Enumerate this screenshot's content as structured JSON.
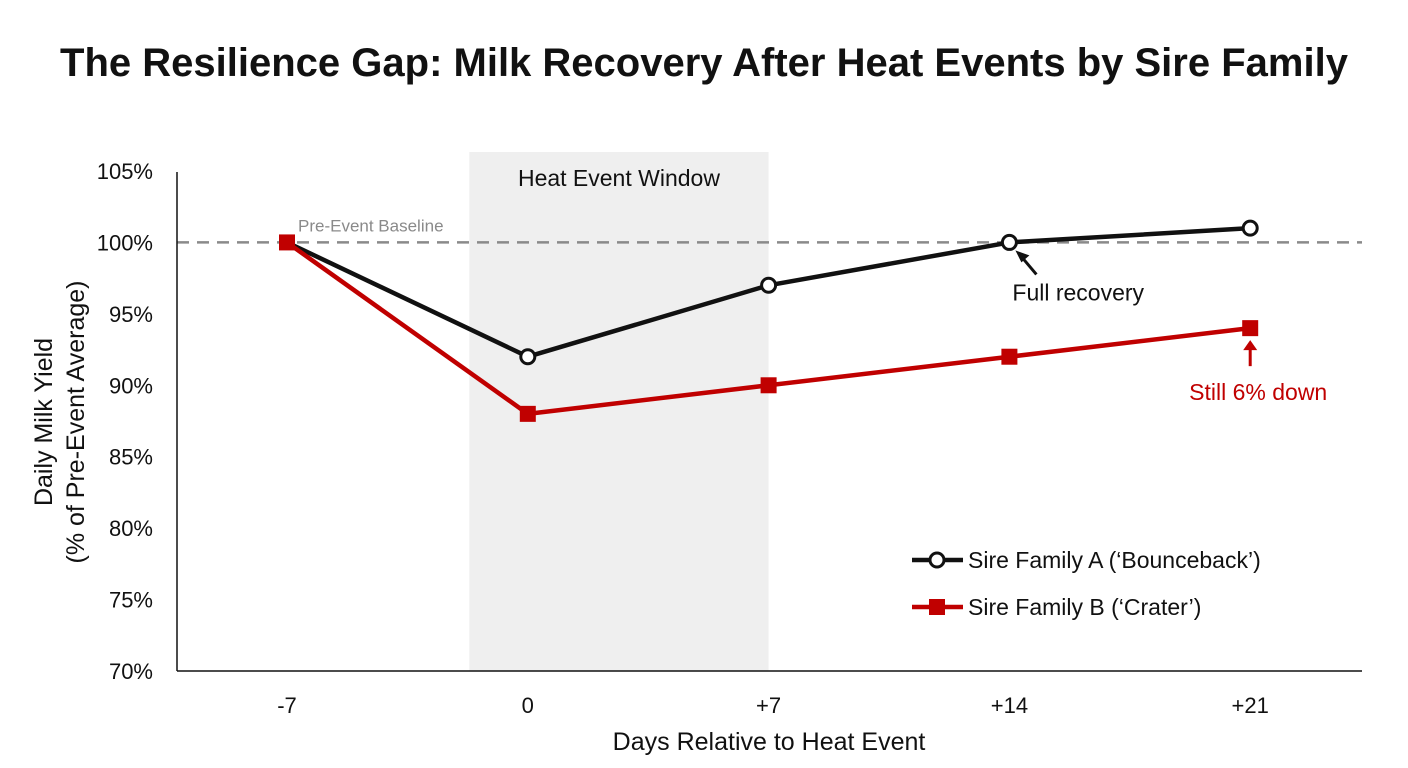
{
  "chart_data": {
    "type": "line",
    "title": "The Resilience Gap: Milk Recovery After Heat Events by Sire Family",
    "xlabel": "Days Relative to Heat Event",
    "ylabel_line1": "Daily Milk Yield",
    "ylabel_line2": "(% of Pre-Event Average)",
    "x": [
      -7,
      0,
      7,
      14,
      21
    ],
    "x_tick_labels": [
      "-7",
      "0",
      "+7",
      "+14",
      "+21"
    ],
    "xlim": [
      -10.3,
      25.8
    ],
    "ylim": [
      70,
      105
    ],
    "y_ticks": [
      70,
      75,
      80,
      85,
      90,
      95,
      100,
      105
    ],
    "y_tick_labels": [
      "70%",
      "75%",
      "80%",
      "85%",
      "90%",
      "95%",
      "100%",
      "105%"
    ],
    "grid": false,
    "series": [
      {
        "name": "Sire Family A (‘Bounceback’)",
        "values": [
          100,
          92,
          97,
          100,
          101
        ],
        "color": "#111111",
        "marker": "open-circle"
      },
      {
        "name": "Sire Family B (‘Crater’)",
        "values": [
          100,
          88,
          90,
          92,
          94
        ],
        "color": "#c00000",
        "marker": "filled-square"
      }
    ],
    "baseline": {
      "value": 100,
      "label": "Pre-Event Baseline",
      "color": "#8a8a8a"
    },
    "shaded_region": {
      "x_start": -1.7,
      "x_end": 7,
      "label": "Heat Event Window",
      "color": "#efefef"
    },
    "annotations": [
      {
        "text": "Full recovery",
        "series": 0,
        "x": 14,
        "y": 100,
        "color": "#111111"
      },
      {
        "text": "Still 6% down",
        "series": 1,
        "x": 21,
        "y": 94,
        "color": "#c00000"
      }
    ],
    "legend_position": "bottom-right"
  }
}
